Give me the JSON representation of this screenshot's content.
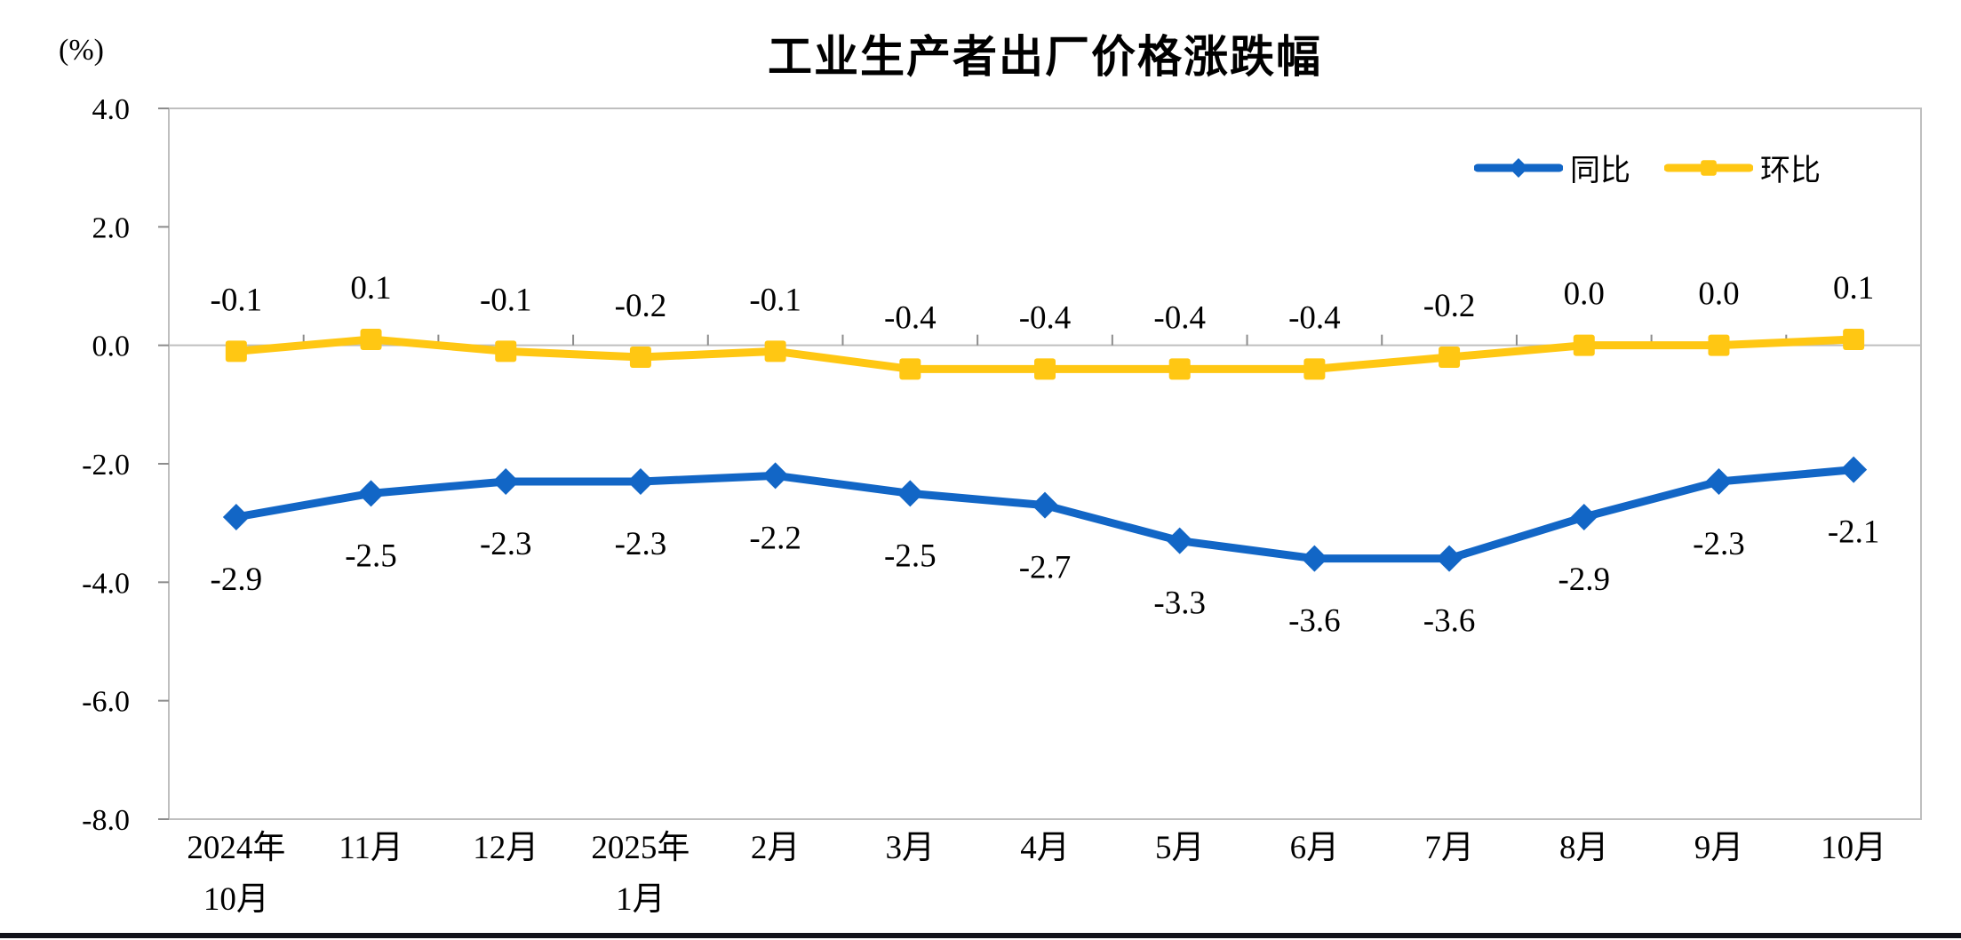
{
  "page": {
    "bottom_rule_color": "#12121a",
    "background_color": "#ffffff"
  },
  "chart_data": {
    "type": "line",
    "title": "工业生产者出厂价格涨跌幅",
    "unit_label": "(%)",
    "categories": [
      "2024年\n10月",
      "11月",
      "12月",
      "2025年\n1月",
      "2月",
      "3月",
      "4月",
      "5月",
      "6月",
      "7月",
      "8月",
      "9月",
      "10月"
    ],
    "series": [
      {
        "name": "同比",
        "color": "#1266c6",
        "marker": "diamond",
        "label_position": "below",
        "values": [
          -2.9,
          -2.5,
          -2.3,
          -2.3,
          -2.2,
          -2.5,
          -2.7,
          -3.3,
          -3.6,
          -3.6,
          -2.9,
          -2.3,
          -2.1
        ],
        "labels": [
          "-2.9",
          "-2.5",
          "-2.3",
          "-2.3",
          "-2.2",
          "-2.5",
          "-2.7",
          "-3.3",
          "-3.6",
          "-3.6",
          "-2.9",
          "-2.3",
          "-2.1"
        ]
      },
      {
        "name": "环比",
        "color": "#ffc713",
        "marker": "square",
        "label_position": "above",
        "values": [
          -0.1,
          0.1,
          -0.1,
          -0.2,
          -0.1,
          -0.4,
          -0.4,
          -0.4,
          -0.4,
          -0.2,
          0.0,
          0.0,
          0.1
        ],
        "labels": [
          "-0.1",
          "0.1",
          "-0.1",
          "-0.2",
          "-0.1",
          "-0.4",
          "-0.4",
          "-0.4",
          "-0.4",
          "-0.2",
          "0.0",
          "0.0",
          "0.1"
        ]
      }
    ],
    "y_axis": {
      "min": -8.0,
      "max": 4.0,
      "step": 2.0,
      "tick_labels": [
        "4.0",
        "2.0",
        "0.0",
        "-2.0",
        "-4.0",
        "-6.0",
        "-8.0"
      ]
    },
    "legend_position": "top-right",
    "grid": false,
    "axis_color": "#bfbfbf",
    "tick_color": "#8c8c8c",
    "label_color": "#000000"
  }
}
